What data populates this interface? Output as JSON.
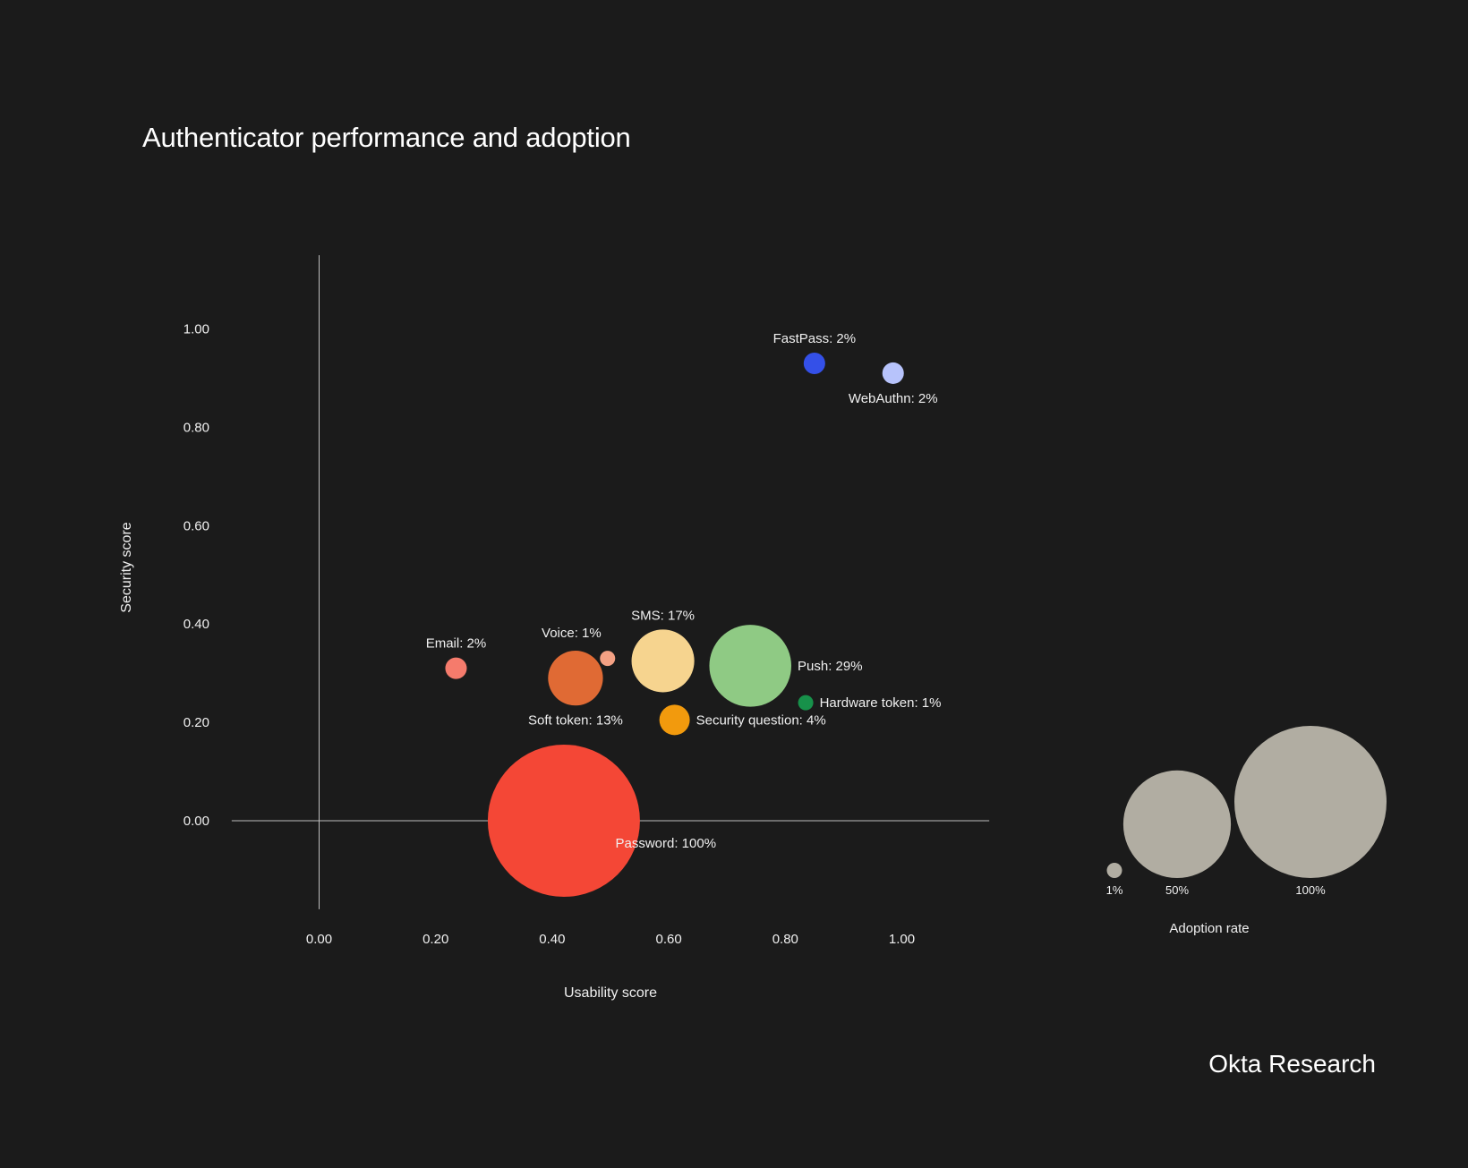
{
  "title": "Authenticator performance and adoption",
  "brand": "Okta Research",
  "colors": {
    "background": "#1b1b1b",
    "axis": "#bdbdbd",
    "legend_bubble": "#b1ada2"
  },
  "chart_data": {
    "type": "bubble",
    "title": "Authenticator performance and adoption",
    "xlabel": "Usability score",
    "ylabel": "Security score",
    "xlim": [
      -0.15,
      1.15
    ],
    "ylim": [
      -0.18,
      1.15
    ],
    "x_ticks": [
      0,
      0.2,
      0.4,
      0.6,
      0.8,
      1.0
    ],
    "x_tick_labels": [
      "0.00",
      "0.20",
      "0.40",
      "0.60",
      "0.80",
      "1.00"
    ],
    "y_ticks": [
      0,
      0.2,
      0.4,
      0.6,
      0.8,
      1.0
    ],
    "y_tick_labels": [
      "0.00",
      "0.20",
      "0.40",
      "0.60",
      "0.80",
      "1.00"
    ],
    "size_variable": "Adoption rate",
    "points": [
      {
        "name": "Password",
        "label": "Password: 100%",
        "x": 0.42,
        "y": 0.0,
        "adoption": 100,
        "color": "#f44736",
        "label_pos": "below-right"
      },
      {
        "name": "Push",
        "label": "Push: 29%",
        "x": 0.74,
        "y": 0.315,
        "adoption": 29,
        "color": "#8fca84",
        "label_pos": "right"
      },
      {
        "name": "SMS",
        "label": "SMS: 17%",
        "x": 0.59,
        "y": 0.325,
        "adoption": 17,
        "color": "#f6d48f",
        "label_pos": "above"
      },
      {
        "name": "Soft token",
        "label": "Soft token: 13%",
        "x": 0.44,
        "y": 0.29,
        "adoption": 13,
        "color": "#e06a34",
        "label_pos": "below"
      },
      {
        "name": "Security question",
        "label": "Security question: 4%",
        "x": 0.61,
        "y": 0.205,
        "adoption": 4,
        "color": "#f29a0d",
        "label_pos": "right"
      },
      {
        "name": "Email",
        "label": "Email: 2%",
        "x": 0.235,
        "y": 0.31,
        "adoption": 2,
        "color": "#f57b6c",
        "label_pos": "above"
      },
      {
        "name": "Voice",
        "label": "Voice: 1%",
        "x": 0.495,
        "y": 0.33,
        "adoption": 1,
        "color": "#f4a184",
        "label_pos": "above-left"
      },
      {
        "name": "Hardware token",
        "label": "Hardware token: 1%",
        "x": 0.835,
        "y": 0.24,
        "adoption": 1,
        "color": "#17914a",
        "label_pos": "right"
      },
      {
        "name": "FastPass",
        "label": "FastPass: 2%",
        "x": 0.85,
        "y": 0.93,
        "adoption": 2,
        "color": "#3450e8",
        "label_pos": "above"
      },
      {
        "name": "WebAuthn",
        "label": "WebAuthn: 2%",
        "x": 0.985,
        "y": 0.91,
        "adoption": 2,
        "color": "#b7c3fb",
        "label_pos": "below"
      }
    ],
    "legend": {
      "title": "Adoption rate",
      "placement": "bottom-right",
      "entries": [
        {
          "label": "1%",
          "adoption": 1
        },
        {
          "label": "50%",
          "adoption": 50
        },
        {
          "label": "100%",
          "adoption": 100
        }
      ]
    }
  }
}
